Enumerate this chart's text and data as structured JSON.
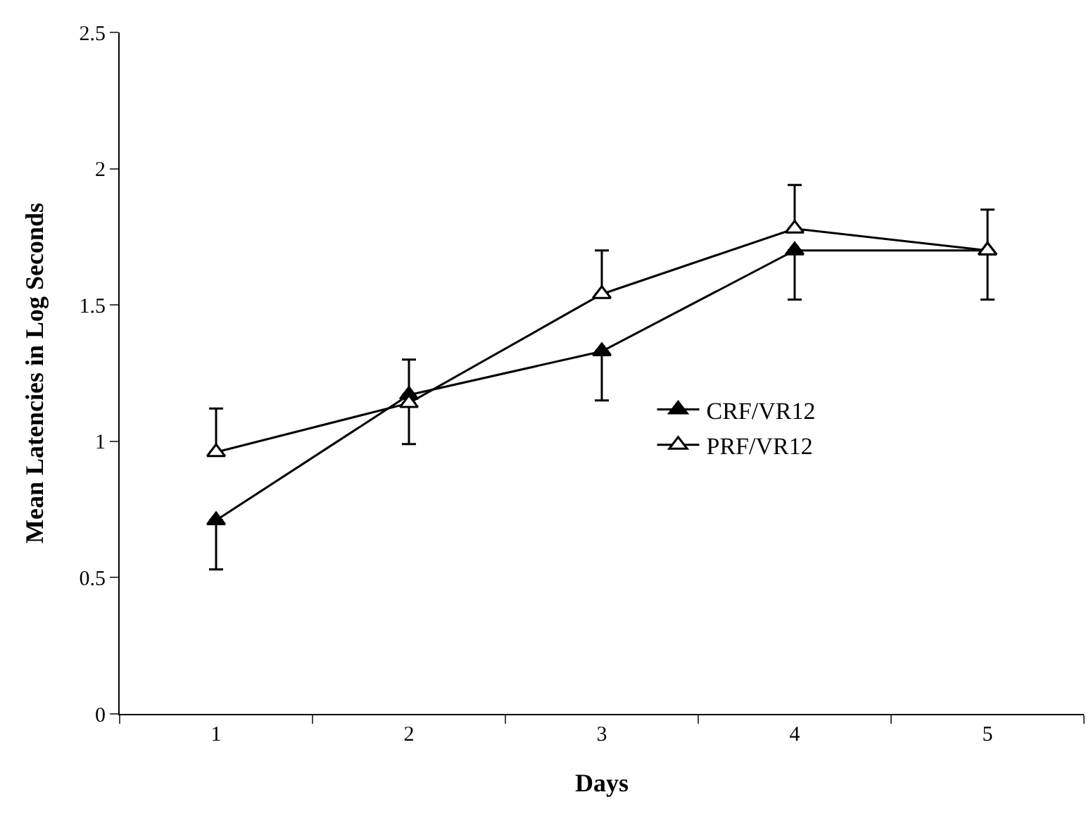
{
  "chart_data": {
    "type": "line",
    "xlabel": "Days",
    "ylabel": "Mean Latencies in Log Seconds",
    "categories": [
      "1",
      "2",
      "3",
      "4",
      "5"
    ],
    "series": [
      {
        "name": "CRF/VR12",
        "color": "#000000",
        "values": [
          0.71,
          1.17,
          1.33,
          1.7,
          1.7
        ],
        "errors": [
          [
            0.53,
            0.71
          ],
          [
            0.99,
            1.17
          ],
          [
            1.15,
            1.33
          ],
          [
            1.52,
            1.7
          ],
          [
            1.52,
            1.7
          ]
        ]
      },
      {
        "name": "PRF/VR12",
        "color": "#ffffff",
        "values": [
          0.96,
          1.14,
          1.54,
          1.78,
          1.7
        ],
        "errors": [
          [
            0.96,
            1.12
          ],
          [
            1.14,
            1.3
          ],
          [
            1.54,
            1.7
          ],
          [
            1.78,
            1.94
          ],
          [
            1.7,
            1.85
          ]
        ]
      }
    ],
    "ylim": [
      0,
      2.5
    ],
    "yticks": [
      0,
      0.5,
      1,
      1.5,
      2,
      2.5
    ],
    "grid": false,
    "legend": "right",
    "marker": "triangle",
    "line_style": "solid"
  }
}
